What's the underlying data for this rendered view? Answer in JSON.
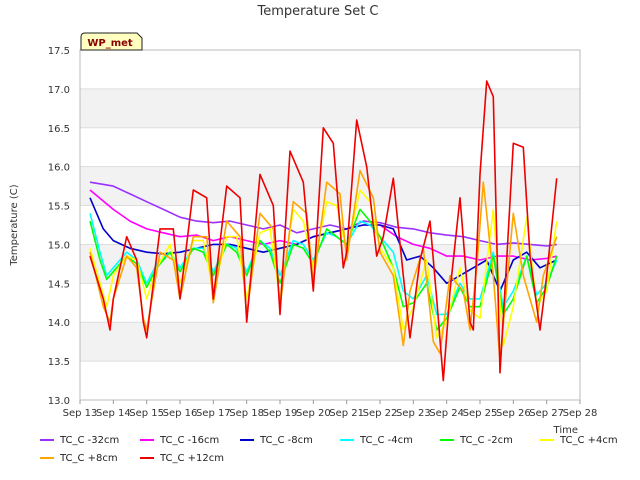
{
  "chart_data": {
    "type": "line",
    "title": "Temperature Set C",
    "xlabel": "Time",
    "ylabel": "Temperature (C)",
    "badge": "WP_met",
    "x_ticks": [
      "Sep 13",
      "Sep 14",
      "Sep 15",
      "Sep 16",
      "Sep 17",
      "Sep 18",
      "Sep 19",
      "Sep 20",
      "Sep 21",
      "Sep 22",
      "Sep 23",
      "Sep 24",
      "Sep 25",
      "Sep 26",
      "Sep 27",
      "Sep 28"
    ],
    "xlim": [
      13,
      28
    ],
    "ylim": [
      13.0,
      17.5
    ],
    "y_ticks": [
      "13.0",
      "13.5",
      "14.0",
      "14.5",
      "15.0",
      "15.5",
      "16.0",
      "16.5",
      "17.0",
      "17.5"
    ],
    "grid": true,
    "legend_placement": "bottom",
    "x_unit": "day of September",
    "series": [
      {
        "name": "TC_C -32cm",
        "color": "#9b30ff",
        "x": [
          13.3,
          14,
          14.5,
          15,
          15.5,
          16,
          16.5,
          17,
          17.5,
          18,
          18.5,
          19,
          19.5,
          20,
          20.5,
          21,
          21.5,
          22,
          22.5,
          23,
          23.5,
          24,
          24.5,
          25,
          25.5,
          26,
          26.5,
          27,
          27.3
        ],
        "y": [
          15.8,
          15.75,
          15.65,
          15.55,
          15.45,
          15.35,
          15.3,
          15.28,
          15.3,
          15.25,
          15.2,
          15.25,
          15.15,
          15.2,
          15.25,
          15.2,
          15.3,
          15.28,
          15.22,
          15.2,
          15.15,
          15.12,
          15.1,
          15.05,
          15.0,
          15.02,
          15.0,
          14.98,
          15.0
        ]
      },
      {
        "name": "TC_C -16cm",
        "color": "#ff00ff",
        "x": [
          13.3,
          14,
          14.5,
          15,
          15.5,
          16,
          16.5,
          17,
          17.5,
          18,
          18.5,
          19,
          19.5,
          20,
          20.5,
          21,
          21.5,
          22,
          22.5,
          23,
          23.5,
          24,
          24.5,
          25,
          25.5,
          26,
          26.5,
          27,
          27.3
        ],
        "y": [
          15.7,
          15.45,
          15.3,
          15.2,
          15.15,
          15.1,
          15.12,
          15.05,
          15.1,
          15.05,
          15.0,
          15.05,
          15.0,
          15.1,
          15.15,
          15.2,
          15.25,
          15.25,
          15.1,
          15.0,
          14.95,
          14.85,
          14.85,
          14.8,
          14.85,
          14.85,
          14.8,
          14.82,
          14.85
        ]
      },
      {
        "name": "TC_C -8cm",
        "color": "#0000cc",
        "x": [
          13.3,
          13.7,
          14,
          14.5,
          15,
          15.5,
          16,
          16.5,
          17,
          17.5,
          18,
          18.5,
          19,
          19.5,
          20,
          20.5,
          21,
          21.5,
          22,
          22.4,
          22.8,
          23.2,
          23.6,
          24,
          24.4,
          24.8,
          25.2,
          25.6,
          26,
          26.4,
          26.8,
          27.3
        ],
        "y": [
          15.6,
          15.2,
          15.05,
          14.95,
          14.9,
          14.88,
          14.9,
          14.95,
          15.0,
          15.0,
          14.95,
          14.9,
          14.95,
          15.0,
          15.1,
          15.15,
          15.2,
          15.25,
          15.25,
          15.2,
          14.8,
          14.85,
          14.7,
          14.5,
          14.6,
          14.7,
          14.8,
          14.4,
          14.8,
          14.9,
          14.7,
          14.8
        ]
      },
      {
        "name": "TC_C -4cm",
        "color": "#00ffff",
        "x": [
          13.3,
          13.6,
          13.8,
          14,
          14.4,
          14.7,
          15,
          15.3,
          15.7,
          16,
          16.4,
          16.7,
          17,
          17.4,
          17.7,
          18,
          18.4,
          18.7,
          19,
          19.4,
          19.7,
          20,
          20.4,
          20.7,
          21,
          21.4,
          21.7,
          22,
          22.4,
          22.7,
          23,
          23.4,
          23.7,
          24,
          24.4,
          24.7,
          25,
          25.4,
          25.7,
          26,
          26.4,
          26.7,
          27,
          27.3
        ],
        "y": [
          15.4,
          14.9,
          14.6,
          14.7,
          14.9,
          14.8,
          14.5,
          14.75,
          14.9,
          14.7,
          14.95,
          14.95,
          14.65,
          15.0,
          14.95,
          14.65,
          15.05,
          14.95,
          14.6,
          15.05,
          15.0,
          14.8,
          15.15,
          15.1,
          15.0,
          15.3,
          15.25,
          15.1,
          14.9,
          14.4,
          14.3,
          14.6,
          14.1,
          14.1,
          14.5,
          14.3,
          14.3,
          14.9,
          14.2,
          14.4,
          14.85,
          14.35,
          14.5,
          14.8
        ]
      },
      {
        "name": "TC_C -2cm",
        "color": "#00ff00",
        "x": [
          13.3,
          13.6,
          13.8,
          14,
          14.4,
          14.7,
          15,
          15.3,
          15.7,
          16,
          16.4,
          16.7,
          17,
          17.4,
          17.7,
          18,
          18.4,
          18.7,
          19,
          19.4,
          19.7,
          20,
          20.4,
          20.7,
          21,
          21.4,
          21.7,
          22,
          22.4,
          22.7,
          23,
          23.4,
          23.7,
          24,
          24.4,
          24.7,
          25,
          25.4,
          25.7,
          26,
          26.4,
          26.7,
          27,
          27.3
        ],
        "y": [
          15.3,
          14.8,
          14.55,
          14.65,
          14.85,
          14.75,
          14.45,
          14.7,
          14.9,
          14.65,
          14.95,
          14.9,
          14.6,
          15.0,
          14.9,
          14.6,
          15.05,
          14.9,
          14.5,
          15.0,
          14.95,
          14.75,
          15.2,
          15.1,
          15.0,
          15.45,
          15.3,
          15.1,
          14.7,
          14.2,
          14.25,
          14.5,
          13.9,
          14.05,
          14.45,
          14.2,
          14.2,
          14.85,
          14.1,
          14.3,
          14.85,
          14.25,
          14.45,
          14.85
        ]
      },
      {
        "name": "TC_C +4cm",
        "color": "#ffff00",
        "x": [
          13.3,
          13.6,
          13.8,
          14,
          14.4,
          14.7,
          15,
          15.3,
          15.7,
          16,
          16.4,
          16.7,
          17,
          17.4,
          17.7,
          18,
          18.4,
          18.7,
          19,
          19.4,
          19.7,
          20,
          20.4,
          20.7,
          21,
          21.4,
          21.7,
          22,
          22.4,
          22.7,
          23,
          23.4,
          23.7,
          24,
          24.4,
          24.7,
          25,
          25.4,
          25.7,
          26,
          26.4,
          26.7,
          27,
          27.3
        ],
        "y": [
          14.95,
          14.5,
          14.2,
          14.6,
          14.85,
          14.8,
          14.3,
          14.7,
          15.0,
          14.5,
          15.05,
          15.05,
          14.4,
          15.1,
          15.1,
          14.3,
          15.15,
          15.2,
          14.3,
          15.45,
          15.3,
          14.7,
          15.55,
          15.5,
          14.9,
          15.7,
          15.55,
          14.95,
          14.7,
          13.9,
          14.2,
          14.8,
          13.8,
          14.0,
          14.7,
          14.15,
          14.05,
          15.45,
          13.7,
          14.2,
          15.35,
          14.2,
          14.4,
          15.3
        ]
      },
      {
        "name": "TC_C +8cm",
        "color": "#ffa500",
        "x": [
          13.3,
          13.7,
          13.9,
          14,
          14.4,
          14.7,
          14.9,
          15,
          15.4,
          15.8,
          16,
          16.4,
          16.8,
          17,
          17.4,
          17.8,
          18,
          18.4,
          18.8,
          19,
          19.4,
          19.8,
          20,
          20.4,
          20.8,
          21,
          21.4,
          21.8,
          22,
          22.4,
          22.7,
          22.9,
          23.3,
          23.6,
          23.8,
          24.1,
          24.5,
          24.7,
          24.9,
          25.1,
          25.4,
          25.6,
          26,
          26.3,
          26.7,
          26.9,
          27.3
        ],
        "y": [
          14.9,
          14.2,
          14.0,
          14.3,
          14.85,
          14.7,
          14.05,
          13.9,
          14.9,
          14.8,
          14.3,
          15.1,
          15.1,
          14.25,
          15.3,
          15.1,
          14.1,
          15.4,
          15.2,
          14.2,
          15.55,
          15.4,
          14.5,
          15.8,
          15.65,
          14.8,
          15.95,
          15.6,
          14.9,
          14.6,
          13.7,
          14.4,
          14.95,
          13.75,
          13.6,
          14.6,
          14.4,
          13.9,
          14.7,
          15.8,
          14.6,
          13.5,
          15.4,
          14.6,
          14.0,
          14.6,
          15.1
        ]
      },
      {
        "name": "TC_C +12cm",
        "color": "#ee0000",
        "x": [
          13.3,
          13.7,
          13.9,
          14,
          14.4,
          14.7,
          14.9,
          15,
          15.4,
          15.8,
          16,
          16.4,
          16.8,
          17,
          17.4,
          17.8,
          18,
          18.4,
          18.8,
          19,
          19.3,
          19.7,
          20,
          20.3,
          20.6,
          20.9,
          21,
          21.3,
          21.6,
          21.9,
          22.1,
          22.4,
          22.7,
          22.9,
          23.2,
          23.5,
          23.7,
          23.9,
          24.1,
          24.4,
          24.7,
          24.8,
          25.0,
          25.2,
          25.4,
          25.6,
          25.8,
          26.0,
          26.3,
          26.5,
          26.8,
          27.0,
          27.3
        ],
        "y": [
          14.85,
          14.3,
          13.9,
          14.3,
          15.1,
          14.8,
          14.0,
          13.8,
          15.2,
          15.2,
          14.3,
          15.7,
          15.6,
          14.3,
          15.75,
          15.6,
          14.0,
          15.9,
          15.5,
          14.1,
          16.2,
          15.8,
          14.4,
          16.5,
          16.3,
          14.7,
          14.9,
          16.6,
          16.0,
          14.85,
          15.1,
          15.85,
          14.6,
          13.8,
          14.8,
          15.3,
          14.3,
          13.25,
          14.4,
          15.6,
          14.0,
          13.9,
          15.9,
          17.1,
          16.9,
          13.35,
          14.8,
          16.3,
          16.25,
          14.85,
          13.9,
          14.6,
          15.85
        ]
      }
    ]
  }
}
